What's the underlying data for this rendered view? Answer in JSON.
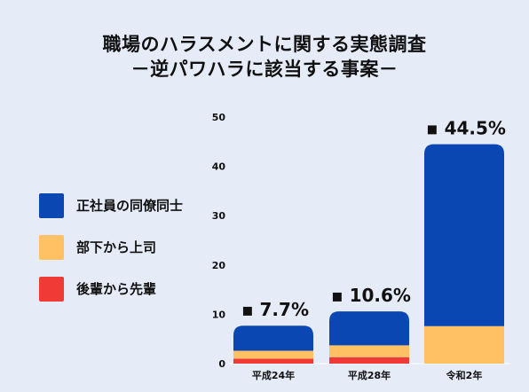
{
  "title_line1": "職場のハラスメントに関する実態調査",
  "title_line2": "－逆パワハラに該当する事案－",
  "legend": [
    {
      "label": "正社員の同僚同士",
      "color": "#0a47b3"
    },
    {
      "label": "部下から上司",
      "color": "#ffc164"
    },
    {
      "label": "後輩から先輩",
      "color": "#ef3a36"
    }
  ],
  "chart_data": {
    "type": "bar",
    "stacked": true,
    "categories": [
      "平成24年",
      "平成28年",
      "令和2年"
    ],
    "series": [
      {
        "name": "後輩から先輩",
        "color": "#ef3a36",
        "values": [
          1.0,
          1.3,
          0.0
        ]
      },
      {
        "name": "部下から上司",
        "color": "#ffc164",
        "values": [
          1.6,
          2.4,
          7.6
        ]
      },
      {
        "name": "正社員の同僚同士",
        "color": "#0a47b3",
        "values": [
          5.1,
          6.9,
          36.9
        ]
      }
    ],
    "totals": [
      7.7,
      10.6,
      44.5
    ],
    "data_labels": [
      "▪ 7.7%",
      "▪ 10.6%",
      "▪ 44.5%"
    ],
    "yticks": [
      0,
      10,
      20,
      30,
      40,
      50
    ],
    "ylim": [
      0,
      50
    ],
    "xlabel": "",
    "ylabel": "",
    "grid": false
  }
}
